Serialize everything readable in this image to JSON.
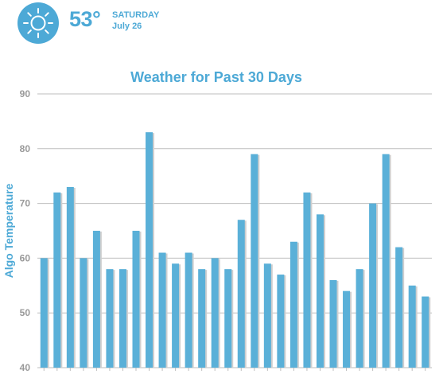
{
  "header": {
    "icon": "sun-icon",
    "temperature": "53°",
    "day": "SATURDAY",
    "date": "July 26"
  },
  "colors": {
    "accent": "#4da9d6",
    "bar": "#5ab0d8",
    "bar_shadow": "#cfcfcf",
    "grid": "#bdbdbd",
    "tick_text": "#999999"
  },
  "chart_data": {
    "type": "bar",
    "title": "Weather for Past 30 Days",
    "ylabel": "Algo Temperature",
    "xlabel": "",
    "ylim": [
      40,
      90
    ],
    "yticks": [
      40,
      50,
      60,
      70,
      80,
      90
    ],
    "grid": true,
    "values": [
      60,
      72,
      73,
      60,
      65,
      58,
      58,
      65,
      83,
      61,
      59,
      61,
      58,
      60,
      58,
      67,
      79,
      59,
      57,
      63,
      72,
      68,
      56,
      54,
      58,
      70,
      79,
      62,
      55,
      53
    ]
  }
}
